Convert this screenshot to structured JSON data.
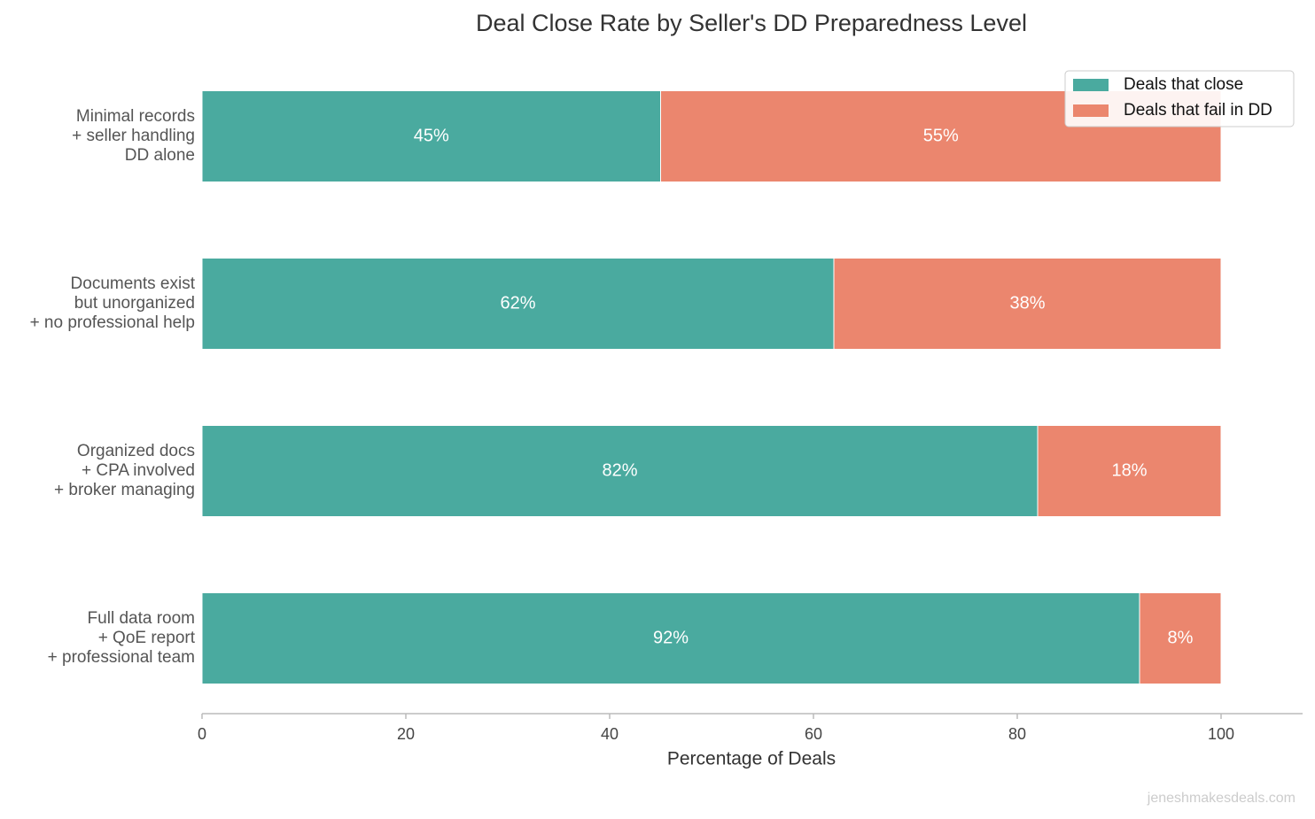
{
  "chart_data": {
    "type": "stacked-barh",
    "title": "Deal Close Rate by Seller's DD Preparedness Level",
    "xlabel": "Percentage of Deals",
    "categories": [
      "Minimal records\n+ seller handling\nDD alone",
      "Documents exist\nbut unorganized\n+ no professional help",
      "Organized docs\n+ CPA involved\n+ broker managing",
      "Full data room\n+ QoE report\n+ professional team"
    ],
    "series": [
      {
        "name": "Deals that close",
        "color": "#4aaa9f",
        "values": [
          45,
          62,
          82,
          92
        ],
        "value_labels": [
          "45%",
          "62%",
          "82%",
          "92%"
        ]
      },
      {
        "name": "Deals that fail in DD",
        "color": "#eb866e",
        "values": [
          55,
          38,
          18,
          8
        ],
        "value_labels": [
          "55%",
          "38%",
          "18%",
          "8%"
        ]
      }
    ],
    "xlim": [
      0,
      108
    ],
    "xticks": [
      0,
      20,
      40,
      60,
      80,
      100
    ],
    "legend": "upper right",
    "watermark": "jeneshmakesdeals.com"
  }
}
